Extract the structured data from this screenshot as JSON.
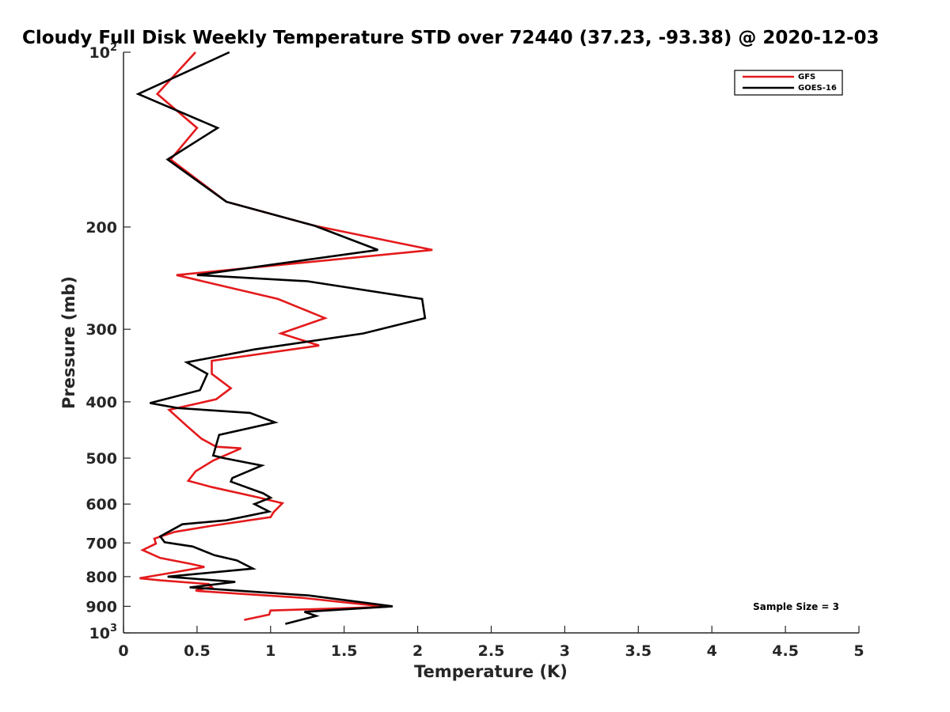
{
  "chart_data": {
    "type": "line",
    "title": "Cloudy Full Disk Weekly Temperature STD over 72440 (37.23, -93.38) @ 2020-12-03",
    "xlabel": "Temperature (K)",
    "ylabel": "Pressure (mb)",
    "xlim": [
      0,
      5
    ],
    "ylim": [
      100,
      1000
    ],
    "y_scale": "log",
    "y_reversed": true,
    "grid": false,
    "legend_position": "top-right",
    "x_ticks": [
      "0",
      "0.5",
      "1",
      "1.5",
      "2",
      "2.5",
      "3",
      "3.5",
      "4",
      "4.5",
      "5"
    ],
    "x_tick_values": [
      0,
      0.5,
      1,
      1.5,
      2,
      2.5,
      3,
      3.5,
      4,
      4.5,
      5
    ],
    "y_ticks": [
      {
        "value": 100,
        "base": "10",
        "exp": "2"
      },
      {
        "value": 200,
        "label": "200"
      },
      {
        "value": 300,
        "label": "300"
      },
      {
        "value": 400,
        "label": "400"
      },
      {
        "value": 500,
        "label": "500"
      },
      {
        "value": 600,
        "label": "600"
      },
      {
        "value": 700,
        "label": "700"
      },
      {
        "value": 800,
        "label": "800"
      },
      {
        "value": 900,
        "label": "900"
      },
      {
        "value": 1000,
        "base": "10",
        "exp": "3"
      }
    ],
    "annotation": "Sample Size = 3",
    "series": [
      {
        "name": "GFS",
        "color": "#e41a1c",
        "points": [
          [
            0.49,
            100
          ],
          [
            0.23,
            118
          ],
          [
            0.5,
            135
          ],
          [
            0.32,
            153
          ],
          [
            0.7,
            181
          ],
          [
            1.3,
            199
          ],
          [
            2.1,
            219
          ],
          [
            0.36,
            242
          ],
          [
            1.05,
            266
          ],
          [
            1.37,
            287
          ],
          [
            1.07,
            305
          ],
          [
            1.33,
            320
          ],
          [
            0.6,
            340
          ],
          [
            0.6,
            358
          ],
          [
            0.73,
            379
          ],
          [
            0.63,
            396
          ],
          [
            0.31,
            413
          ],
          [
            0.43,
            440
          ],
          [
            0.53,
            463
          ],
          [
            0.63,
            478
          ],
          [
            0.8,
            481
          ],
          [
            0.61,
            505
          ],
          [
            0.49,
            527
          ],
          [
            0.44,
            547
          ],
          [
            0.6,
            561
          ],
          [
            0.91,
            584
          ],
          [
            1.08,
            598
          ],
          [
            1.02,
            620
          ],
          [
            1.0,
            632
          ],
          [
            0.6,
            654
          ],
          [
            0.35,
            670
          ],
          [
            0.21,
            688
          ],
          [
            0.22,
            702
          ],
          [
            0.13,
            720
          ],
          [
            0.25,
            743
          ],
          [
            0.46,
            761
          ],
          [
            0.55,
            770
          ],
          [
            0.3,
            790
          ],
          [
            0.11,
            805
          ],
          [
            0.25,
            812
          ],
          [
            0.58,
            824
          ],
          [
            0.6,
            834
          ],
          [
            0.49,
            845
          ],
          [
            0.51,
            847
          ],
          [
            1.21,
            870
          ],
          [
            1.79,
            902
          ],
          [
            1.31,
            910
          ],
          [
            1.0,
            915
          ],
          [
            0.99,
            930
          ],
          [
            0.82,
            950
          ]
        ]
      },
      {
        "name": "GOES-16",
        "color": "#000000",
        "points": [
          [
            0.72,
            100
          ],
          [
            0.1,
            118
          ],
          [
            0.64,
            135
          ],
          [
            0.3,
            153
          ],
          [
            0.7,
            181
          ],
          [
            1.3,
            199
          ],
          [
            1.73,
            219
          ],
          [
            0.5,
            242
          ],
          [
            1.25,
            248
          ],
          [
            2.03,
            266
          ],
          [
            2.05,
            287
          ],
          [
            1.63,
            305
          ],
          [
            0.89,
            325
          ],
          [
            0.43,
            342
          ],
          [
            0.57,
            358
          ],
          [
            0.52,
            382
          ],
          [
            0.18,
            402
          ],
          [
            0.37,
            410
          ],
          [
            0.86,
            418
          ],
          [
            1.03,
            434
          ],
          [
            0.65,
            456
          ],
          [
            0.61,
            495
          ],
          [
            0.68,
            500
          ],
          [
            0.94,
            515
          ],
          [
            0.74,
            541
          ],
          [
            0.73,
            549
          ],
          [
            0.95,
            575
          ],
          [
            1.0,
            585
          ],
          [
            0.89,
            600
          ],
          [
            0.99,
            618
          ],
          [
            0.7,
            640
          ],
          [
            0.4,
            650
          ],
          [
            0.25,
            682
          ],
          [
            0.28,
            698
          ],
          [
            0.47,
            710
          ],
          [
            0.62,
            735
          ],
          [
            0.77,
            750
          ],
          [
            0.88,
            775
          ],
          [
            0.3,
            800
          ],
          [
            0.76,
            817
          ],
          [
            0.45,
            835
          ],
          [
            1.26,
            862
          ],
          [
            1.83,
            900
          ],
          [
            1.23,
            920
          ],
          [
            1.31,
            935
          ],
          [
            1.1,
            965
          ]
        ]
      }
    ]
  }
}
